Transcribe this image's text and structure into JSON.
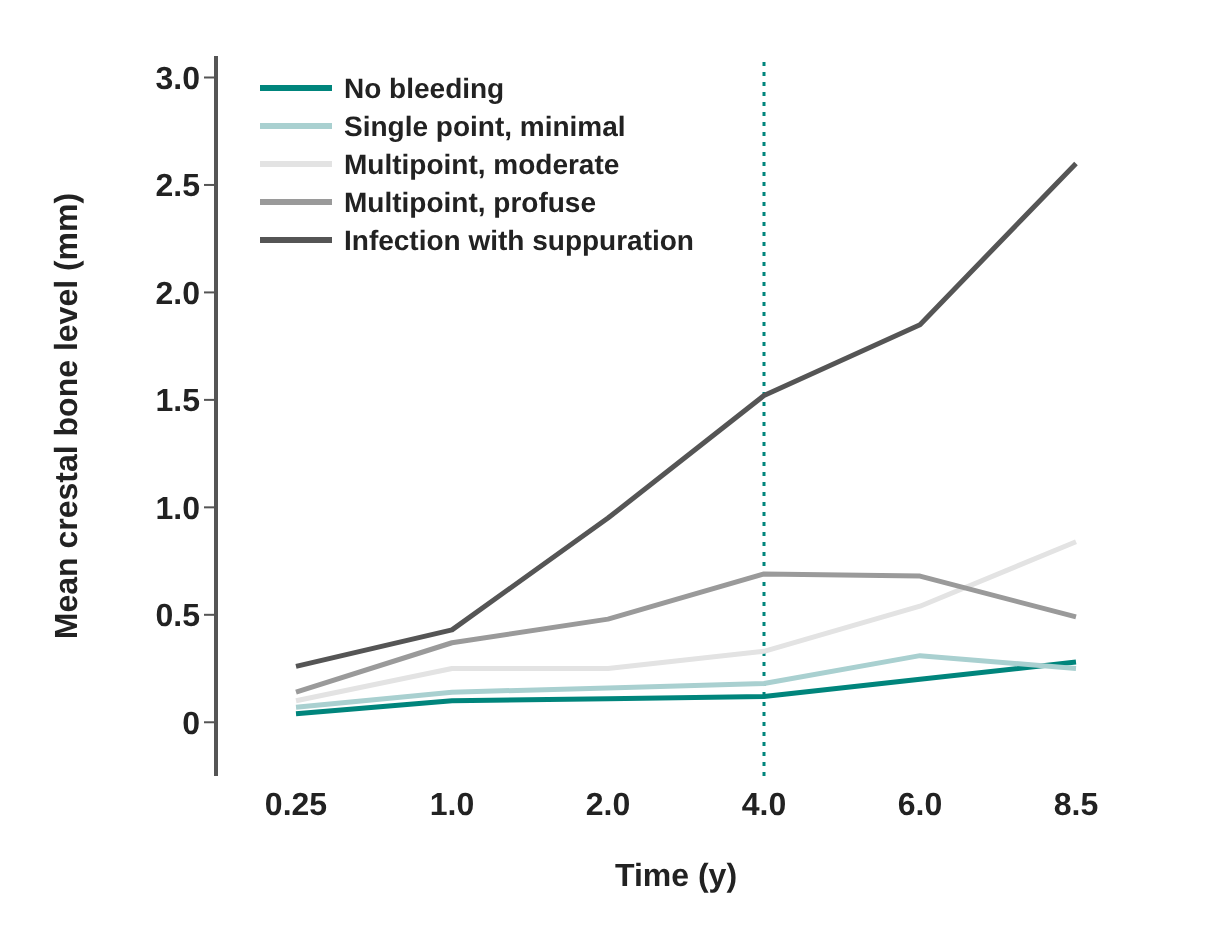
{
  "chart_data": {
    "type": "line",
    "xlabel": "Time (y)",
    "ylabel": "Mean crestal bone level (mm)",
    "categories": [
      "0.25",
      "1.0",
      "2.0",
      "4.0",
      "6.0",
      "8.5"
    ],
    "series": [
      {
        "name": "No bleeding",
        "color": "#00857c",
        "values": [
          0.04,
          0.1,
          0.11,
          0.12,
          0.2,
          0.28
        ]
      },
      {
        "name": "Single point, minimal",
        "color": "#a9d0d0",
        "values": [
          0.07,
          0.14,
          0.16,
          0.18,
          0.31,
          0.25
        ]
      },
      {
        "name": "Multipoint, moderate",
        "color": "#e3e3e3",
        "values": [
          0.1,
          0.25,
          0.25,
          0.33,
          0.54,
          0.84
        ]
      },
      {
        "name": "Multipoint, profuse",
        "color": "#9a9a9a",
        "values": [
          0.14,
          0.37,
          0.48,
          0.69,
          0.68,
          0.49
        ]
      },
      {
        "name": "Infection with suppuration",
        "color": "#555555",
        "values": [
          0.26,
          0.43,
          0.95,
          1.52,
          1.85,
          2.6
        ]
      }
    ],
    "ylim": [
      -0.25,
      3.1
    ],
    "yticks": [
      0,
      {
        "value": 0.5,
        "label": "0.5"
      },
      {
        "value": 1,
        "label": "1.0"
      },
      {
        "value": 1.5,
        "label": "1.5"
      },
      {
        "value": 2,
        "label": "2.0"
      },
      {
        "value": 2.5,
        "label": "2.5"
      },
      {
        "value": 3,
        "label": "3.0"
      }
    ],
    "ref_lines": [
      {
        "axis": "x",
        "value": "4.0",
        "color": "#00857c",
        "line_style": "dotted"
      }
    ],
    "grid": false,
    "legend": "top left",
    "marker": "none",
    "line_style": "solid"
  }
}
